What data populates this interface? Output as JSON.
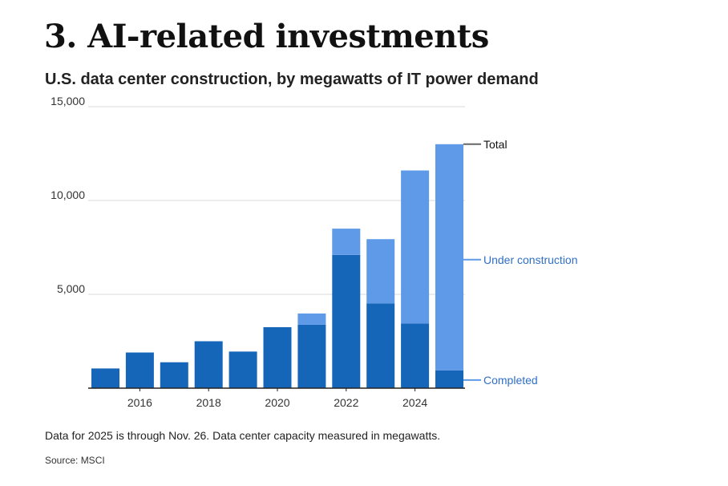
{
  "headline": "3. AI-related investments",
  "chart_data": {
    "type": "bar",
    "stacked": true,
    "title": "U.S. data center construction, by megawatts of IT power demand",
    "xlabel": "",
    "ylabel": "",
    "x": [
      2015,
      2016,
      2017,
      2018,
      2019,
      2020,
      2021,
      2022,
      2023,
      2024,
      2025
    ],
    "x_tick_labels": [
      "2016",
      "2018",
      "2020",
      "2022",
      "2024"
    ],
    "y_ticks": [
      5000,
      10000,
      15000
    ],
    "y_tick_labels": [
      "5,000",
      "10,000",
      "15,000"
    ],
    "ylim": [
      0,
      15000
    ],
    "grid": true,
    "series": [
      {
        "name": "Completed",
        "color": "#1565b8",
        "values": [
          1050,
          1900,
          1380,
          2500,
          1950,
          3250,
          3380,
          7100,
          4520,
          3450,
          950
        ]
      },
      {
        "name": "Under construction",
        "color": "#5f9ae8",
        "values": [
          0,
          0,
          0,
          0,
          0,
          0,
          600,
          1400,
          3420,
          8150,
          12050
        ]
      }
    ],
    "totals": [
      1050,
      1900,
      1380,
      2500,
      1950,
      3250,
      3980,
      8500,
      7940,
      11600,
      13000
    ],
    "annotations": {
      "total": "Total",
      "under_construction": "Under construction",
      "completed": "Completed"
    },
    "colors": {
      "total_line": "#666666",
      "annotation_blue": "#2f6fc4"
    }
  },
  "footnote": "Data for 2025 is through Nov. 26. Data center capacity measured in megawatts.",
  "source": "Source: MSCI"
}
